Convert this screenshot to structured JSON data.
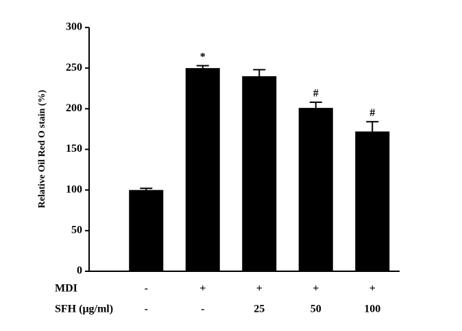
{
  "chart_data": {
    "type": "bar",
    "y_label": "Relative Oil Red O stain (%)",
    "values": [
      100,
      250,
      240,
      201,
      172
    ],
    "errors": [
      2,
      3,
      8,
      7,
      12
    ],
    "annotations": [
      null,
      "*",
      null,
      "#",
      "#"
    ],
    "rows": [
      {
        "label": "MDI",
        "values": [
          "-",
          "+",
          "+",
          "+",
          "+"
        ]
      },
      {
        "label": "SFH (μg/ml)",
        "values": [
          "-",
          "-",
          "25",
          "50",
          "100"
        ]
      }
    ],
    "color": "#000000",
    "ylim": [
      0,
      300
    ],
    "yticks": [
      0,
      50,
      100,
      150,
      200,
      250,
      300
    ],
    "grid": false
  }
}
